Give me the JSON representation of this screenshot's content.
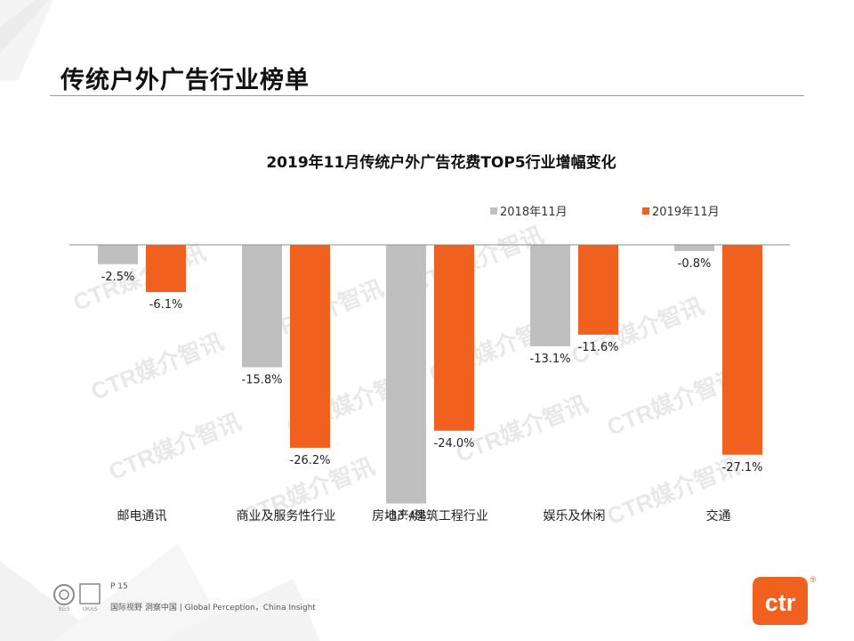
{
  "page": {
    "title": "传统户外广告行业榜单",
    "page_number": "P 15",
    "slogan": "国际视野 洞察中国 | Global Perception，China Insight",
    "watermark": "CTR媒介智讯",
    "logo_text": "ctr",
    "logo_mark": "®",
    "cert_labels": [
      "SGS",
      "UKAS"
    ]
  },
  "colors": {
    "series_2018": "#bfbfbf",
    "series_2019": "#f0601e",
    "logo_bg": "#f0601e",
    "watermark": "#e8e8e8"
  },
  "chart_data": {
    "type": "bar",
    "title": "2019年11月传统户外广告花费TOP5行业增幅变化",
    "categories": [
      "邮电通讯",
      "商业及服务性行业",
      "房地产/建筑工程行业",
      "娱乐及休闲",
      "交通"
    ],
    "series": [
      {
        "name": "2018年11月",
        "values": [
          -2.5,
          -15.8,
          -33.4,
          -13.1,
          -0.8
        ],
        "labels": [
          "-2.5%",
          "-15.8%",
          "-33.4%",
          "-13.1%",
          "-0.8%"
        ]
      },
      {
        "name": "2019年11月",
        "values": [
          -6.1,
          -26.2,
          -24.0,
          -11.6,
          -27.1
        ],
        "labels": [
          "-6.1%",
          "-26.2%",
          "-24.0%",
          "-11.6%",
          "-27.1%"
        ]
      }
    ],
    "ylim": [
      -35,
      0
    ],
    "legend_position": "top-right",
    "xlabel": "",
    "ylabel": ""
  }
}
